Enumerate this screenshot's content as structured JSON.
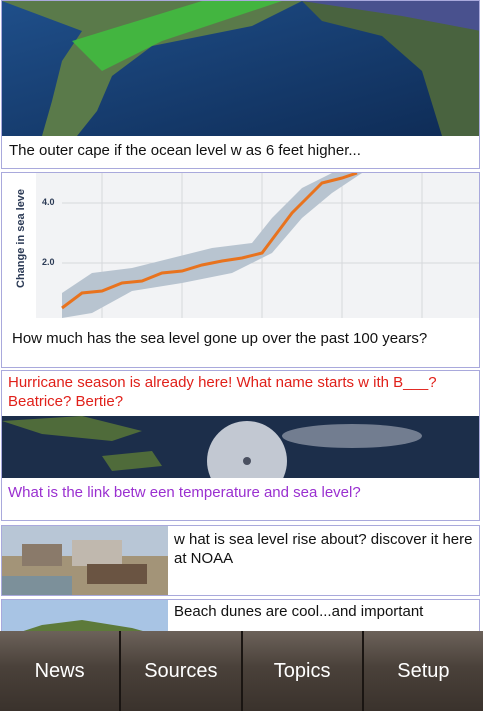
{
  "feed": [
    {
      "text": "The outer cape if the ocean level w as 6 feet higher..."
    },
    {
      "text": "How  much has the sea level gone up over the past 100 years?",
      "image_text": {
        "axis_label": "Change in sea leve",
        "ticks": [
          "4.0",
          "2.0"
        ]
      }
    },
    {
      "text": "Hurricane season is already here! What name starts w ith B___? Beatrice? Bertie?"
    },
    {
      "text": "What is the link betw een temperature and sea level?"
    },
    {
      "text": "w hat is sea level rise about? discover it here at NOAA"
    },
    {
      "text": "Beach dunes are cool...and important"
    }
  ],
  "tabs": [
    "News",
    "Sources",
    "Topics",
    "Setup"
  ]
}
